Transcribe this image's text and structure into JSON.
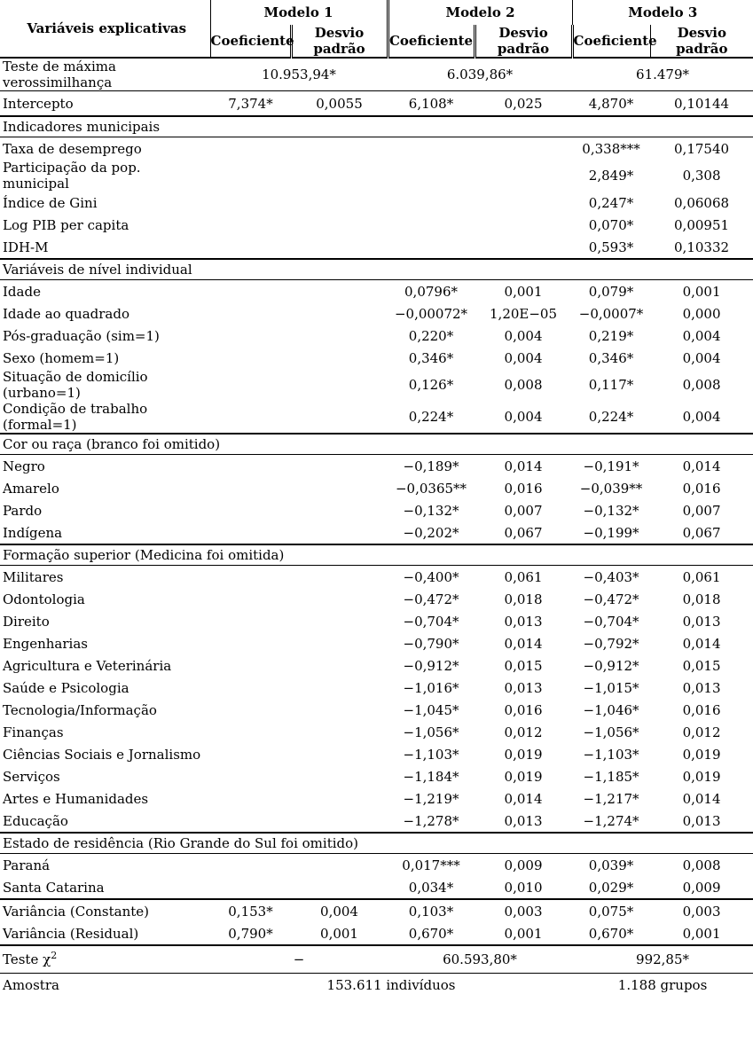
{
  "page": {
    "background_color": "#ffffff",
    "text_color": "#000000"
  },
  "table": {
    "header": {
      "col0": "Variáveis explicativas",
      "models": [
        "Modelo 1",
        "Modelo 2",
        "Modelo 3"
      ],
      "subheaders": [
        "Coeficiente",
        "Desvio padrão"
      ]
    },
    "rows": [
      {
        "type": "span3",
        "label": "Teste de máxima verossimilhança",
        "values": [
          "10.953,94*",
          "6.039,86*",
          "61.479*"
        ],
        "line": 1
      },
      {
        "type": "data",
        "variant": "intercept",
        "label": "Intercepto",
        "values": [
          "7,374*",
          "0,0055",
          "6,108*",
          "0,025",
          "4,870*",
          "0,10144"
        ],
        "line": 2
      },
      {
        "type": "section",
        "label": "Indicadores municipais",
        "line": 1
      },
      {
        "type": "data",
        "label": "Taxa de desemprego",
        "values": [
          "",
          "",
          "",
          "",
          "0,338***",
          "0,17540"
        ],
        "line": 0
      },
      {
        "type": "data",
        "label": "Participação da pop. municipal",
        "values": [
          "",
          "",
          "",
          "",
          "2,849*",
          "0,308"
        ],
        "line": 0
      },
      {
        "type": "data",
        "label": "Índice de Gini",
        "values": [
          "",
          "",
          "",
          "",
          "0,247*",
          "0,06068"
        ],
        "line": 0
      },
      {
        "type": "data",
        "label": "Log PIB per capita",
        "values": [
          "",
          "",
          "",
          "",
          "0,070*",
          "0,00951"
        ],
        "line": 0
      },
      {
        "type": "data",
        "label": "IDH-M",
        "values": [
          "",
          "",
          "",
          "",
          "0,593*",
          "0,10332"
        ],
        "line": 2
      },
      {
        "type": "section",
        "label": "Variáveis de nível individual",
        "line": 1
      },
      {
        "type": "data",
        "label": "Idade",
        "values": [
          "",
          "",
          "0,0796*",
          "0,001",
          "0,079*",
          "0,001"
        ],
        "line": 0
      },
      {
        "type": "data",
        "label": "Idade ao quadrado",
        "values": [
          "",
          "",
          "−0,00072*",
          "1,20E−05",
          "−0,0007*",
          "0,000"
        ],
        "line": 0
      },
      {
        "type": "data",
        "label": "Pós-graduação (sim=1)",
        "values": [
          "",
          "",
          "0,220*",
          "0,004",
          "0,219*",
          "0,004"
        ],
        "line": 0
      },
      {
        "type": "data",
        "label": "Sexo (homem=1)",
        "values": [
          "",
          "",
          "0,346*",
          "0,004",
          "0,346*",
          "0,004"
        ],
        "line": 0
      },
      {
        "type": "data",
        "label": "Situação de domicílio (urbano=1)",
        "values": [
          "",
          "",
          "0,126*",
          "0,008",
          "0,117*",
          "0,008"
        ],
        "line": 0
      },
      {
        "type": "data",
        "label": "Condição de trabalho (formal=1)",
        "values": [
          "",
          "",
          "0,224*",
          "0,004",
          "0,224*",
          "0,004"
        ],
        "line": 2
      },
      {
        "type": "section",
        "label": "Cor ou raça (branco foi omitido)",
        "line": 1
      },
      {
        "type": "data",
        "label": "Negro",
        "values": [
          "",
          "",
          "−0,189*",
          "0,014",
          "−0,191*",
          "0,014"
        ],
        "line": 0
      },
      {
        "type": "data",
        "label": "Amarelo",
        "values": [
          "",
          "",
          "−0,0365**",
          "0,016",
          "−0,039**",
          "0,016"
        ],
        "line": 0
      },
      {
        "type": "data",
        "label": "Pardo",
        "values": [
          "",
          "",
          "−0,132*",
          "0,007",
          "−0,132*",
          "0,007"
        ],
        "line": 0
      },
      {
        "type": "data",
        "label": "Indígena",
        "values": [
          "",
          "",
          "−0,202*",
          "0,067",
          "−0,199*",
          "0,067"
        ],
        "line": 2
      },
      {
        "type": "section",
        "label": "Formação superior (Medicina foi omitida)",
        "line": 1
      },
      {
        "type": "data",
        "label": "Militares",
        "values": [
          "",
          "",
          "−0,400*",
          "0,061",
          "−0,403*",
          "0,061"
        ],
        "line": 0
      },
      {
        "type": "data",
        "label": "Odontologia",
        "values": [
          "",
          "",
          "−0,472*",
          "0,018",
          "−0,472*",
          "0,018"
        ],
        "line": 0
      },
      {
        "type": "data",
        "label": "Direito",
        "values": [
          "",
          "",
          "−0,704*",
          "0,013",
          "−0,704*",
          "0,013"
        ],
        "line": 0
      },
      {
        "type": "data",
        "label": "Engenharias",
        "values": [
          "",
          "",
          "−0,790*",
          "0,014",
          "−0,792*",
          "0,014"
        ],
        "line": 0
      },
      {
        "type": "data",
        "label": "Agricultura e Veterinária",
        "values": [
          "",
          "",
          "−0,912*",
          "0,015",
          "−0,912*",
          "0,015"
        ],
        "line": 0
      },
      {
        "type": "data",
        "label": "Saúde e Psicologia",
        "values": [
          "",
          "",
          "−1,016*",
          "0,013",
          "−1,015*",
          "0,013"
        ],
        "line": 0
      },
      {
        "type": "data",
        "label": "Tecnologia/Informação",
        "values": [
          "",
          "",
          "−1,045*",
          "0,016",
          "−1,046*",
          "0,016"
        ],
        "line": 0
      },
      {
        "type": "data",
        "label": "Finanças",
        "values": [
          "",
          "",
          "−1,056*",
          "0,012",
          "−1,056*",
          "0,012"
        ],
        "line": 0
      },
      {
        "type": "data",
        "label": "Ciências Sociais e Jornalismo",
        "values": [
          "",
          "",
          "−1,103*",
          "0,019",
          "−1,103*",
          "0,019"
        ],
        "line": 0
      },
      {
        "type": "data",
        "label": "Serviços",
        "values": [
          "",
          "",
          "−1,184*",
          "0,019",
          "−1,185*",
          "0,019"
        ],
        "line": 0
      },
      {
        "type": "data",
        "label": "Artes e Humanidades",
        "values": [
          "",
          "",
          "−1,219*",
          "0,014",
          "−1,217*",
          "0,014"
        ],
        "line": 0
      },
      {
        "type": "data",
        "label": "Educação",
        "values": [
          "",
          "",
          "−1,278*",
          "0,013",
          "−1,274*",
          "0,013"
        ],
        "line": 2
      },
      {
        "type": "section",
        "label": "Estado de residência (Rio Grande do Sul foi omitido)",
        "line": 1
      },
      {
        "type": "data",
        "label": "Paraná",
        "values": [
          "",
          "",
          "0,017***",
          "0,009",
          "0,039*",
          "0,008"
        ],
        "line": 0
      },
      {
        "type": "data",
        "label": "Santa Catarina",
        "values": [
          "",
          "",
          "0,034*",
          "0,010",
          "0,029*",
          "0,009"
        ],
        "line": 2
      },
      {
        "type": "data",
        "label": "Variância (Constante)",
        "values": [
          "0,153*",
          "0,004",
          "0,103*",
          "0,003",
          "0,075*",
          "0,003"
        ],
        "line": 0
      },
      {
        "type": "data",
        "label": "Variância (Residual)",
        "values": [
          "0,790*",
          "0,001",
          "0,670*",
          "0,001",
          "0,670*",
          "0,001"
        ],
        "line": 2
      },
      {
        "type": "span3",
        "label": "Teste χ",
        "label_sup": "2",
        "values": [
          "−",
          "60.593,80*",
          "992,85*"
        ],
        "line": 1
      },
      {
        "type": "amostra",
        "label": "Amostra",
        "values": [
          "153.611 indivíduos",
          "1.188 grupos"
        ],
        "line": 0
      }
    ]
  }
}
